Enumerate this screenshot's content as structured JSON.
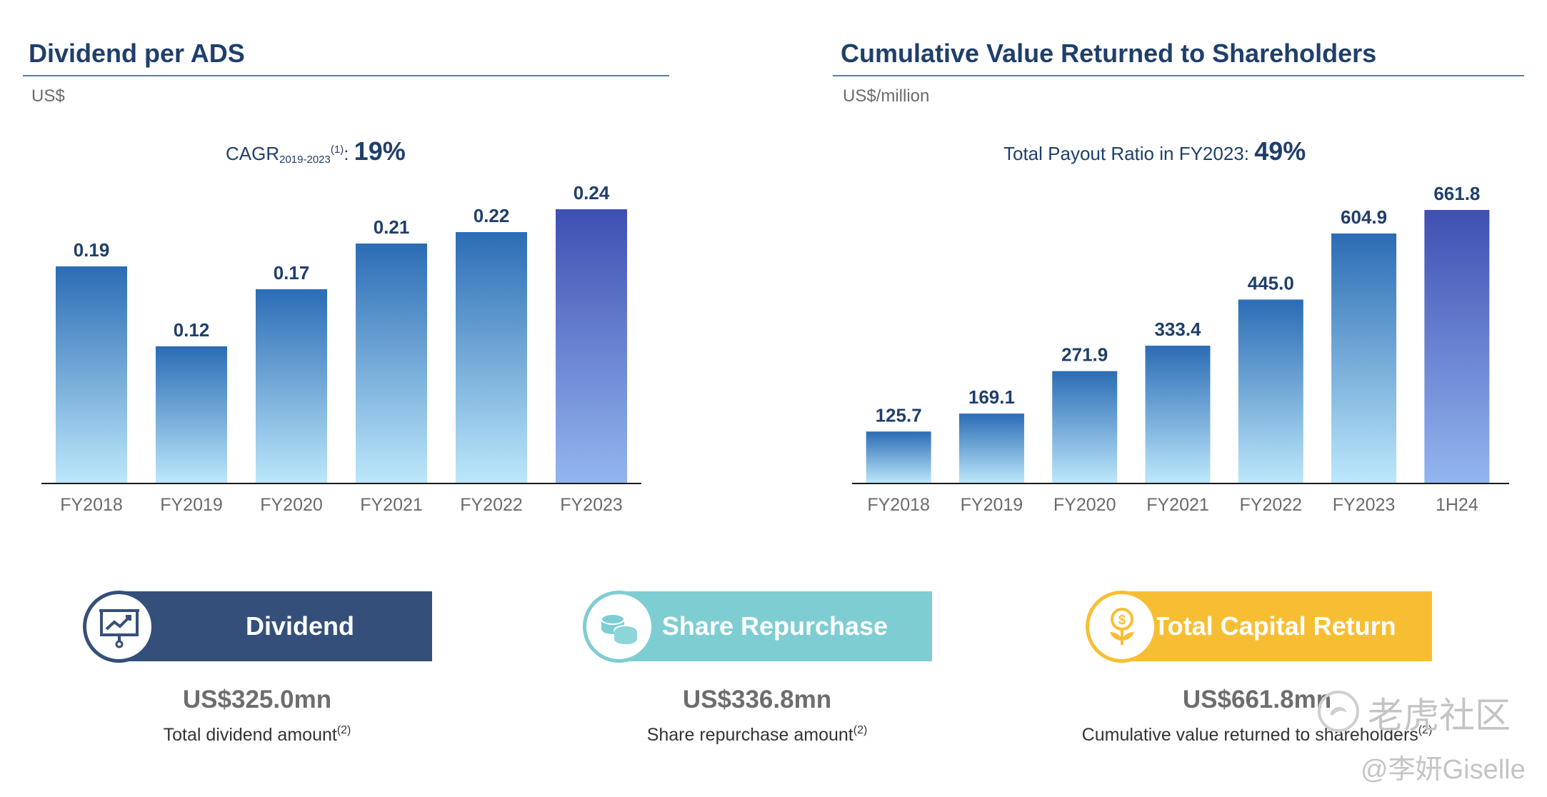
{
  "left_panel": {
    "title": "Dividend per ADS",
    "unit": "US$",
    "cagr_label": "CAGR",
    "cagr_sub": "2019-2023",
    "cagr_note": "(1)",
    "cagr_colon": ":",
    "cagr_value": "19%"
  },
  "right_panel": {
    "title": "Cumulative Value Returned to Shareholders",
    "unit": "US$/million",
    "payout_label": "Total Payout Ratio in FY2023:",
    "payout_value": "49%"
  },
  "chart_data": [
    {
      "type": "bar",
      "title": "Dividend per ADS",
      "ylabel": "US$",
      "categories": [
        "FY2018",
        "FY2019",
        "FY2020",
        "FY2021",
        "FY2022",
        "FY2023"
      ],
      "values": [
        0.19,
        0.12,
        0.17,
        0.21,
        0.22,
        0.24
      ],
      "value_labels": [
        "0.19",
        "0.12",
        "0.17",
        "0.21",
        "0.22",
        "0.24"
      ],
      "ylim": [
        0,
        0.24
      ],
      "grid": false,
      "legend": "none",
      "highlight_index": 5,
      "colors": {
        "bar_top": "#2b6cb5",
        "bar_bottom": "#bde8fb",
        "highlight_top": "#3f4fb2",
        "highlight_bottom": "#93b6ef",
        "label": "#1f3f6b"
      }
    },
    {
      "type": "bar",
      "title": "Cumulative Value Returned to Shareholders",
      "ylabel": "US$/million",
      "categories": [
        "FY2018",
        "FY2019",
        "FY2020",
        "FY2021",
        "FY2022",
        "FY2023",
        "1H24"
      ],
      "values": [
        125.7,
        169.1,
        271.9,
        333.4,
        445.0,
        604.9,
        661.8
      ],
      "value_labels": [
        "125.7",
        "169.1",
        "271.9",
        "333.4",
        "445.0",
        "604.9",
        "661.8"
      ],
      "ylim": [
        0,
        661.8
      ],
      "grid": false,
      "legend": "none",
      "highlight_index": 6,
      "colors": {
        "bar_top": "#2b6cb5",
        "bar_bottom": "#bde8fb",
        "highlight_top": "#3f4fb2",
        "highlight_bottom": "#93b6ef",
        "label": "#1f3f6b"
      }
    }
  ],
  "summary": {
    "dividend": {
      "label": "Dividend",
      "amount": "US$325.0mn",
      "caption": "Total dividend amount",
      "note": "(2)",
      "color": "#34507a",
      "icon": "presentation-chart-icon"
    },
    "repurchase": {
      "label": "Share Repurchase",
      "amount": "US$336.8mn",
      "caption": "Share repurchase amount",
      "note": "(2)",
      "color": "#7ecdd3",
      "icon": "coins-icon"
    },
    "total": {
      "label": "Total Capital Return",
      "amount": "US$661.8mn",
      "caption": "Cumulative value returned to shareholders",
      "note": "(2)",
      "color": "#f8be33",
      "icon": "money-plant-icon"
    }
  },
  "watermark": {
    "logo_text": "老虎社区",
    "handle": "@李妍Giselle",
    "icon": "tiger-logo-icon"
  }
}
